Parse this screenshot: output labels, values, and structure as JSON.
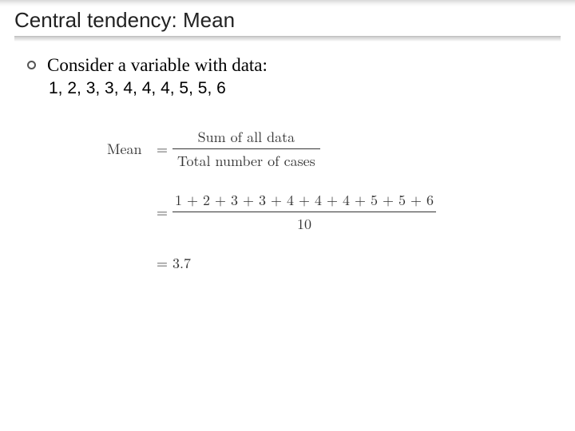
{
  "title": "Central tendency: Mean",
  "bullet": {
    "line1": "Consider a variable with data:",
    "line2": "1, 2, 3, 3, 4, 4, 4, 5, 5, 6"
  },
  "formula": {
    "lhs": "Mean",
    "eq": "=",
    "frac1": {
      "num": "Sum of all data",
      "den": "Total number of cases"
    },
    "frac2": {
      "num": "1 + 2 + 3 + 3 + 4 + 4 + 4 + 5 + 5 + 6",
      "den": "10"
    },
    "result": "3.7"
  },
  "colors": {
    "background": "#ffffff",
    "text": "#000000",
    "formula_text": "#333333",
    "gradient_top": "#d8d8d8",
    "gradient_line": "#bfbfbf"
  },
  "fonts": {
    "title_pt": 26,
    "bullet_pt": 23,
    "data_pt": 21,
    "formula_pt": 18
  }
}
